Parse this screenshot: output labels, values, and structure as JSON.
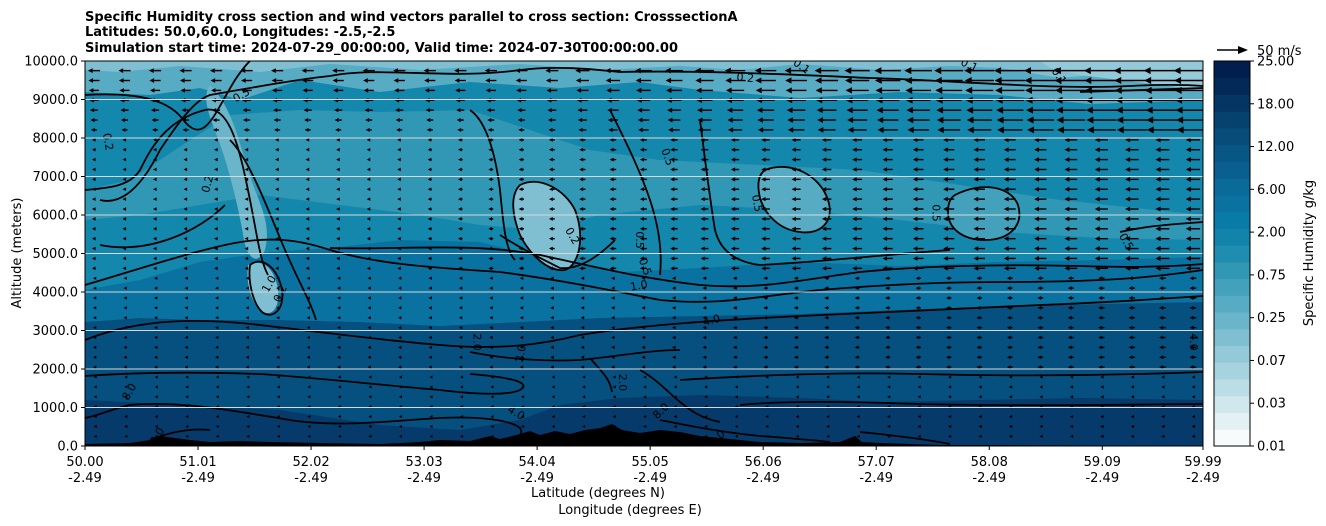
{
  "chart_data": {
    "type": "contourf",
    "title_lines": [
      "Specific Humidity cross section and wind vectors parallel to cross section: CrosssectionA",
      "Latitudes: 50.0,60.0, Longitudes: -2.5,-2.5",
      "Simulation start time: 2024-07-29_00:00:00, Valid time: 2024-07-30T00:00:00.00"
    ],
    "ylabel": "Altitude (meters)",
    "xlabel_lines": [
      "Latitude (degrees N)",
      "Longitude (degrees E)"
    ],
    "ylim": [
      0,
      10000
    ],
    "xlim": [
      50.0,
      59.99
    ],
    "y_ticks": [
      {
        "value": 0,
        "label": "0.0"
      },
      {
        "value": 1000,
        "label": "1000.0"
      },
      {
        "value": 2000,
        "label": "2000.0"
      },
      {
        "value": 3000,
        "label": "3000.0"
      },
      {
        "value": 4000,
        "label": "4000.0"
      },
      {
        "value": 5000,
        "label": "5000.0"
      },
      {
        "value": 6000,
        "label": "6000.0"
      },
      {
        "value": 7000,
        "label": "7000.0"
      },
      {
        "value": 8000,
        "label": "8000.0"
      },
      {
        "value": 9000,
        "label": "9000.0"
      },
      {
        "value": 10000,
        "label": "10000.0"
      }
    ],
    "x_ticks": [
      {
        "lat": 50.0,
        "lat_label": "50.00",
        "lon_label": "-2.49"
      },
      {
        "lat": 51.01,
        "lat_label": "51.01",
        "lon_label": "-2.49"
      },
      {
        "lat": 52.02,
        "lat_label": "52.02",
        "lon_label": "-2.49"
      },
      {
        "lat": 53.03,
        "lat_label": "53.03",
        "lon_label": "-2.49"
      },
      {
        "lat": 54.04,
        "lat_label": "54.04",
        "lon_label": "-2.49"
      },
      {
        "lat": 55.05,
        "lat_label": "55.05",
        "lon_label": "-2.49"
      },
      {
        "lat": 56.06,
        "lat_label": "56.06",
        "lon_label": "-2.49"
      },
      {
        "lat": 57.07,
        "lat_label": "57.07",
        "lon_label": "-2.49"
      },
      {
        "lat": 58.08,
        "lat_label": "58.08",
        "lon_label": "-2.49"
      },
      {
        "lat": 59.09,
        "lat_label": "59.09",
        "lon_label": "-2.49"
      },
      {
        "lat": 59.99,
        "lat_label": "59.99",
        "lon_label": "-2.49"
      }
    ],
    "grid": "horizontal",
    "colorbar": {
      "label": "Specific Humidity g/kg",
      "levels": [
        0.01,
        0.02,
        0.03,
        0.05,
        0.07,
        0.1,
        0.15,
        0.25,
        0.35,
        0.5,
        0.75,
        1.0,
        1.5,
        2.0,
        3.0,
        4.0,
        6.0,
        8.0,
        12.0,
        15.0,
        18.0,
        21.0,
        25.0
      ],
      "tick_labels": [
        "0.01",
        "0.03",
        "0.07",
        "0.25",
        "0.75",
        "2.00",
        "6.00",
        "12.00",
        "18.00",
        "25.00"
      ],
      "colors": [
        "#f7fbfc",
        "#e3f1f4",
        "#cfe7ed",
        "#bbdde6",
        "#a7d3df",
        "#93c9d8",
        "#7fbfd1",
        "#6bb5ca",
        "#57abc3",
        "#43a1bc",
        "#3097b5",
        "#1f8daf",
        "#1284ab",
        "#087ba6",
        "#0a72a0",
        "#0a6a99",
        "#095f8f",
        "#085684",
        "#074d79",
        "#06426e",
        "#053563",
        "#032958",
        "#021e4e"
      ]
    },
    "quiver_key": {
      "label": "50 m/s",
      "speed": 50
    },
    "wind": "mostly northerly (toward lower latitude) wind; strongest 30-45 m/s above 8000 m north of 58 N, weaker below 3000 m",
    "contour_labels": [
      {
        "text": "0.2",
        "lat": 55.9,
        "alt": 9550,
        "rot": 5
      },
      {
        "text": "0.1",
        "lat": 56.4,
        "alt": 9850,
        "rot": 35
      },
      {
        "text": "0.1",
        "lat": 57.9,
        "alt": 9880,
        "rot": 25
      },
      {
        "text": "0.1",
        "lat": 58.7,
        "alt": 9600,
        "rot": 55
      },
      {
        "text": "0.5",
        "lat": 51.4,
        "alt": 9100,
        "rot": -30
      },
      {
        "text": "0.2",
        "lat": 50.2,
        "alt": 7900,
        "rot": 80
      },
      {
        "text": "0.2",
        "lat": 51.1,
        "alt": 6800,
        "rot": -75
      },
      {
        "text": "0.5",
        "lat": 55.2,
        "alt": 7500,
        "rot": 70
      },
      {
        "text": "0.5",
        "lat": 56.0,
        "alt": 6300,
        "rot": 80
      },
      {
        "text": "0.5",
        "lat": 57.6,
        "alt": 6050,
        "rot": 90
      },
      {
        "text": "0.5",
        "lat": 59.3,
        "alt": 5300,
        "rot": 60
      },
      {
        "text": "0.2",
        "lat": 54.35,
        "alt": 5450,
        "rot": 60
      },
      {
        "text": "0.5",
        "lat": 54.95,
        "alt": 5350,
        "rot": 90
      },
      {
        "text": "0.5",
        "lat": 55.0,
        "alt": 4650,
        "rot": 70
      },
      {
        "text": "1.0",
        "lat": 54.95,
        "alt": 4150,
        "rot": -10
      },
      {
        "text": "1.0",
        "lat": 51.65,
        "alt": 4200,
        "rot": -60
      },
      {
        "text": "0.2",
        "lat": 51.75,
        "alt": 3950,
        "rot": -65
      },
      {
        "text": "4.0",
        "lat": 55.6,
        "alt": 3250,
        "rot": -15
      },
      {
        "text": "2.0",
        "lat": 53.5,
        "alt": 2700,
        "rot": 90
      },
      {
        "text": "2.0",
        "lat": 53.9,
        "alt": 2400,
        "rot": -80
      },
      {
        "text": "2.0",
        "lat": 54.8,
        "alt": 1650,
        "rot": 90
      },
      {
        "text": "4.0",
        "lat": 59.9,
        "alt": 2700,
        "rot": 90
      },
      {
        "text": "8.0",
        "lat": 50.4,
        "alt": 1400,
        "rot": -60
      },
      {
        "text": "8.0",
        "lat": 50.65,
        "alt": 250,
        "rot": -60
      },
      {
        "text": "4.0",
        "lat": 53.85,
        "alt": 850,
        "rot": 30
      },
      {
        "text": "8.0",
        "lat": 55.15,
        "alt": 900,
        "rot": -45
      },
      {
        "text": "8.0",
        "lat": 55.65,
        "alt": 200,
        "rot": -40
      }
    ]
  }
}
